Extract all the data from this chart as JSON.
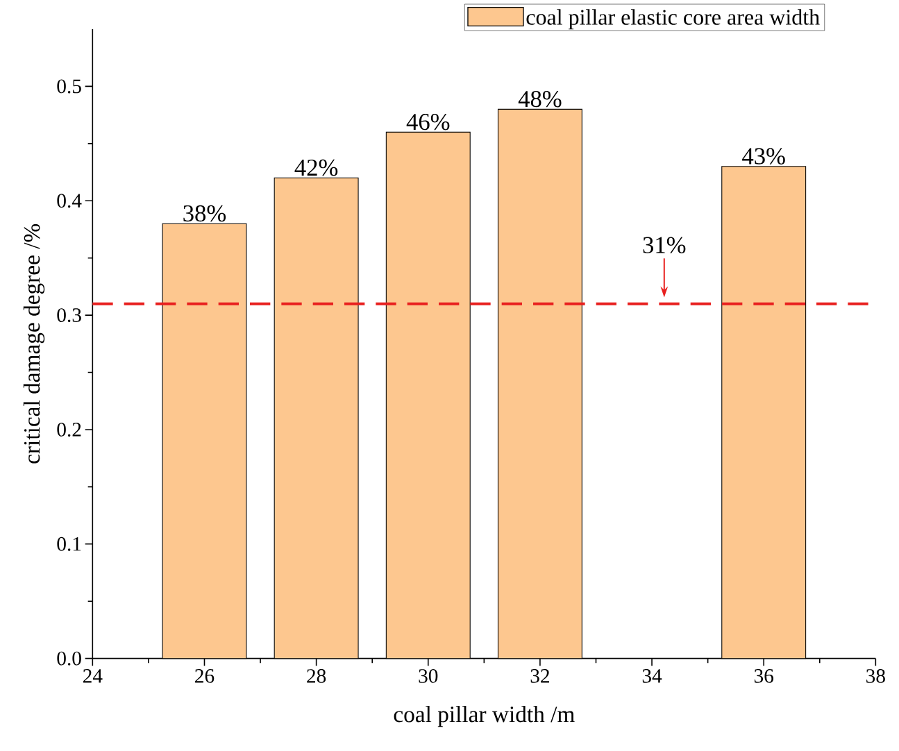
{
  "chart_data": {
    "type": "bar",
    "xlabel": "coal pillar width /m",
    "ylabel": "critical damage degree /%",
    "x": [
      26,
      28,
      30,
      32,
      36
    ],
    "series": [
      {
        "name": "coal pillar  elastic core area width",
        "color": "#fdc78f",
        "values": [
          0.38,
          0.42,
          0.46,
          0.48,
          0.43
        ],
        "value_labels": [
          "38%",
          "42%",
          "46%",
          "48%",
          "43%"
        ]
      }
    ],
    "xlim": [
      24,
      38
    ],
    "xticks": [
      24,
      26,
      28,
      30,
      32,
      34,
      36,
      38
    ],
    "ylim": [
      0,
      0.55
    ],
    "yticks": [
      {
        "value": 0,
        "label": "0.0"
      },
      0.1,
      0.2,
      0.3,
      0.4,
      0.5
    ],
    "ref_lines": [
      {
        "axis": "y",
        "value": 0.31,
        "label": "31%",
        "color": "#e8201f",
        "line_style": "dashed"
      }
    ],
    "legend": "top right",
    "grid": false
  }
}
